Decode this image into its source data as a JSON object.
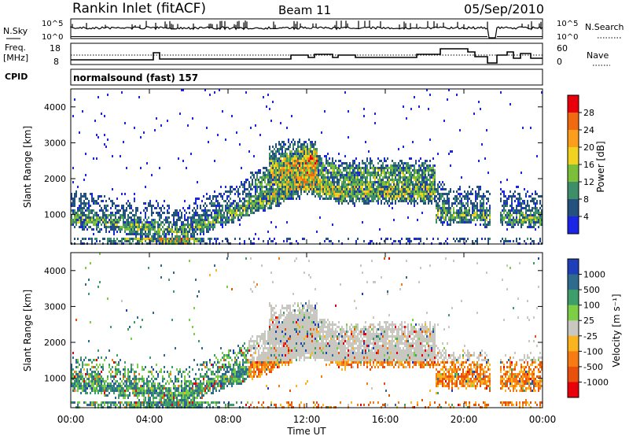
{
  "header": {
    "station": "Rankin Inlet (fitACF)",
    "beam": "Beam 11",
    "date": "05/Sep/2010"
  },
  "nsky_panel": {
    "left_label": "N.Sky",
    "right_label": "N.Search",
    "left_ticks": [
      "10^5",
      "10^0"
    ],
    "right_ticks": [
      "10^5",
      "10^0"
    ]
  },
  "freq_panel": {
    "left_label_line1": "Freq.",
    "left_label_line2": "[MHz]",
    "left_ticks": [
      "18",
      "8"
    ],
    "right_label": "Nave",
    "right_ticks": [
      "60",
      "0"
    ]
  },
  "cpid": {
    "label": "CPID",
    "value": "normalsound (fast) 157"
  },
  "chart_data": [
    {
      "type": "heatmap",
      "name": "power",
      "ylabel": "Slant Range [km]",
      "yticks": [
        "4000",
        "3000",
        "2000",
        "1000"
      ],
      "ylim": [
        180,
        4500
      ],
      "xlim_hours": [
        0,
        24
      ],
      "colorbar_label": "Power [dB]",
      "colorbar_ticks": [
        "28",
        "24",
        "20",
        "16",
        "12",
        "8",
        "4"
      ],
      "colorbar_colors": [
        "#e8000b",
        "#f26a0f",
        "#fb9e1c",
        "#f0d21f",
        "#7bbf3a",
        "#3e8e6a",
        "#24527e",
        "#1c25e6"
      ]
    },
    {
      "type": "heatmap",
      "name": "velocity",
      "ylabel": "Slant Range [km]",
      "yticks": [
        "4000",
        "3000",
        "2000",
        "1000"
      ],
      "ylim": [
        180,
        4500
      ],
      "xlim_hours": [
        0,
        24
      ],
      "xticks": [
        "00:00",
        "04:00",
        "08:00",
        "12:00",
        "16:00",
        "20:00",
        "00:00"
      ],
      "xlabel": "Time UT",
      "colorbar_label": "Velocity [m s⁻¹]",
      "colorbar_ticks": [
        "1000",
        "500",
        "100",
        "25",
        "-25",
        "-100",
        "-500",
        "-1000"
      ],
      "colorbar_colors": [
        "#1f3fb8",
        "#2f6b8e",
        "#3e9e6a",
        "#7ccf44",
        "#c8c8c0",
        "#fbb41e",
        "#f77b12",
        "#e8500c",
        "#e8000b"
      ]
    }
  ],
  "colors": {
    "power_red": "#e8000b",
    "power_orange": "#f26a0f",
    "power_yellow": "#f0d21f",
    "power_green": "#7bbf3a",
    "power_teal": "#3e8e6a",
    "power_blue": "#1c25e6",
    "velocity_grey": "#c8c8c0",
    "velocity_green": "#3e9e6a",
    "velocity_orange": "#f77b12"
  }
}
